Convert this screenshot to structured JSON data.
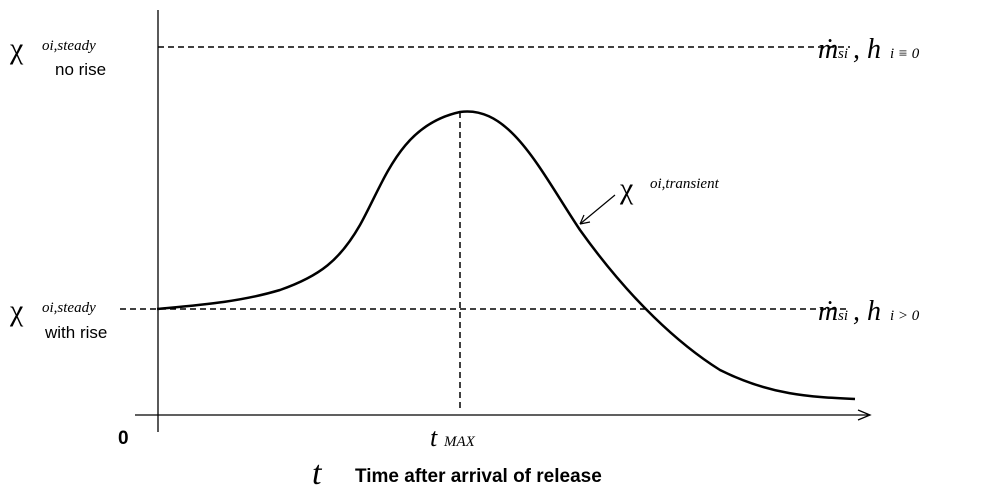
{
  "labels": {
    "top_left": {
      "symbol": "χ",
      "subscript": "oi,steady",
      "note": "no rise"
    },
    "mid_left": {
      "symbol": "χ",
      "subscript": "oi,steady",
      "note": "with rise"
    },
    "curve": {
      "symbol": "χ",
      "subscript": "oi,transient"
    },
    "top_right": {
      "symbol": "ṁ",
      "sub1": "si",
      "mid": ", h",
      "sub2": "i ≡ 0"
    },
    "mid_right": {
      "symbol": "ṁ",
      "sub1": "si",
      "mid": ", h",
      "sub2": "i > 0"
    },
    "origin": "0",
    "peak": {
      "symbol": "t",
      "subscript": "MAX"
    },
    "x_axis": {
      "symbol": "t",
      "title": "Time after arrival of release"
    }
  }
}
